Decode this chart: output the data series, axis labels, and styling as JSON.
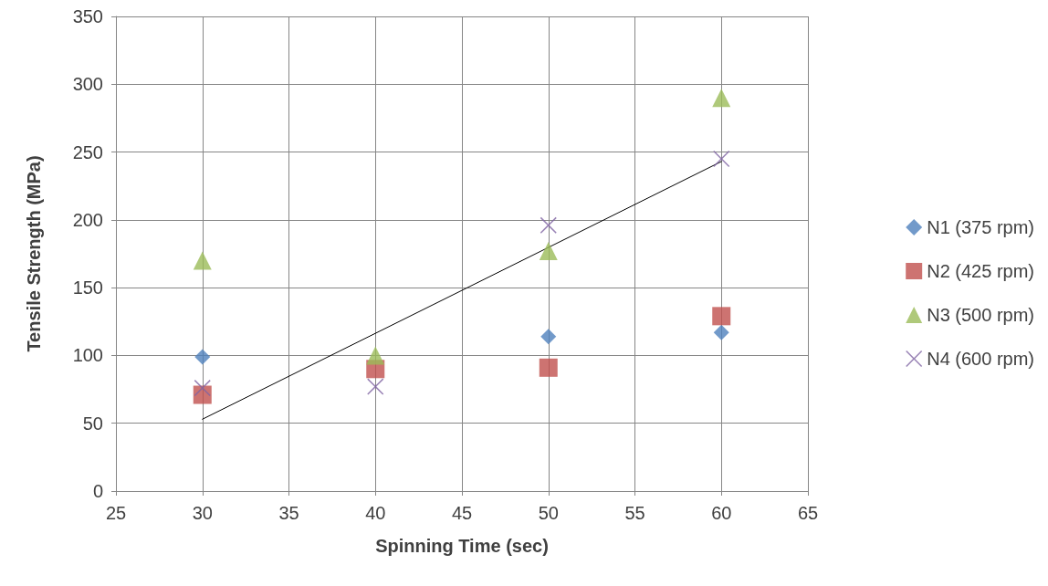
{
  "chart_data": {
    "type": "scatter",
    "xlabel": "Spinning Time (sec)",
    "ylabel": "Tensile Strength (MPa)",
    "xlim": [
      25,
      65
    ],
    "xticks": [
      25,
      30,
      35,
      40,
      45,
      50,
      55,
      60,
      65
    ],
    "ylim": [
      0,
      350
    ],
    "yticks": [
      0,
      50,
      100,
      150,
      200,
      250,
      300,
      350
    ],
    "grid": true,
    "legend": "right",
    "x": [
      30,
      40,
      50,
      60
    ],
    "series": [
      {
        "name": "N1 (375 rpm)",
        "color": "#4f81bd",
        "marker": "diamond",
        "values": [
          99,
          null,
          114,
          117
        ]
      },
      {
        "name": "N2 (425 rpm)",
        "color": "#c0504d",
        "marker": "square",
        "values": [
          71,
          90,
          91,
          129
        ]
      },
      {
        "name": "N3 (500 rpm)",
        "color": "#9bbb59",
        "marker": "triangle",
        "values": [
          170,
          100,
          177,
          290
        ]
      },
      {
        "name": "N4 (600 rpm)",
        "color": "#8064a2",
        "marker": "cross",
        "values": [
          76,
          77,
          196,
          245
        ]
      },
      {
        "type": "line",
        "color": "#000000",
        "marker": "none",
        "x": [
          30,
          60
        ],
        "values": [
          53,
          243
        ]
      }
    ]
  }
}
